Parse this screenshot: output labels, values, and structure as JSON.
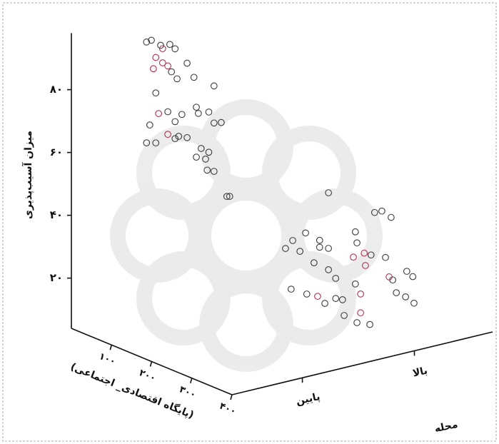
{
  "chart_data": {
    "type": "scatter3d",
    "y_label": "میزان آسیب‌پذیری",
    "x_label": "(پایگاه اقتصادی_ اجتماعی)",
    "z_label": "محله",
    "z_categories": [
      "پایین",
      "بالا"
    ],
    "xlim": [
      0,
      400
    ],
    "xticks": [
      {
        "value": 100,
        "label": "۱۰۰"
      },
      {
        "value": 200,
        "label": "۲۰۰"
      },
      {
        "value": 300,
        "label": "۳۰۰"
      },
      {
        "value": 400,
        "label": "۴۰۰"
      }
    ],
    "ylim": [
      4,
      98
    ],
    "yticks": [
      {
        "value": 20,
        "label": "۲۰"
      },
      {
        "value": 40,
        "label": "۴۰"
      },
      {
        "value": 60,
        "label": "۶۰"
      },
      {
        "value": 80,
        "label": "۸۰"
      }
    ],
    "series": [
      {
        "color": "#3a3a3a",
        "z": 0,
        "x": [
          24,
          47,
          70,
          83,
          12,
          113,
          88,
          130,
          180,
          35,
          65,
          100,
          141,
          167,
          20,
          83,
          136,
          180,
          198,
          113,
          83,
          12,
          35,
          148,
          167,
          136,
          159,
          163,
          180,
          212,
          219,
          74,
          92
        ],
        "values": [
          91.6,
          91.2,
          92.7,
          92,
          90.4,
          89,
          82.7,
          85.4,
          85.3,
          75.4,
          71,
          72,
          74.5,
          76.3,
          64.4,
          68.8,
          76.2,
          73.5,
          74.6,
          65.3,
          63.4,
          58.3,
          59.5,
          63.7,
          63.5,
          60.3,
          60.9,
          57.6,
          58.1,
          51.8,
          52.2,
          84.2,
          64.6
        ]
      },
      {
        "color": "#b03050",
        "z": 0,
        "x": [
          35,
          52,
          65,
          29,
          42,
          65,
          52
        ],
        "values": [
          86.7,
          85.9,
          85.6,
          82.8,
          69.2,
          63.8,
          90.4
        ]
      },
      {
        "color": "#3a3a3a",
        "z": 1,
        "x": [
          186,
          129,
          97,
          164,
          79,
          115,
          164,
          186,
          150,
          186,
          93,
          132,
          204,
          225,
          257,
          253,
          257,
          253,
          292,
          301,
          319,
          342,
          328,
          346,
          381,
          396,
          378,
          399,
          355,
          204,
          177,
          221,
          289
        ],
        "values": [
          43,
          27.2,
          23.1,
          26.7,
          19.6,
          20.6,
          24.5,
          25.3,
          18.8,
          18.5,
          7.4,
          7.9,
          10.3,
          6,
          5.4,
          17.5,
          30.8,
          34.1,
          28.8,
          42.8,
          44.2,
          43.4,
          29.9,
          23.7,
          28.3,
          27.4,
          20,
          19.1,
          20.1,
          16.7,
          7.3,
          10.8,
          6.5
        ]
      },
      {
        "color": "#b03050",
        "z": 1,
        "x": [
          159,
          266,
          266,
          248,
          275,
          337,
          278
        ],
        "values": [
          8.6,
          15,
          9,
          25.8,
          28.5,
          24.2,
          24.7
        ]
      }
    ]
  }
}
